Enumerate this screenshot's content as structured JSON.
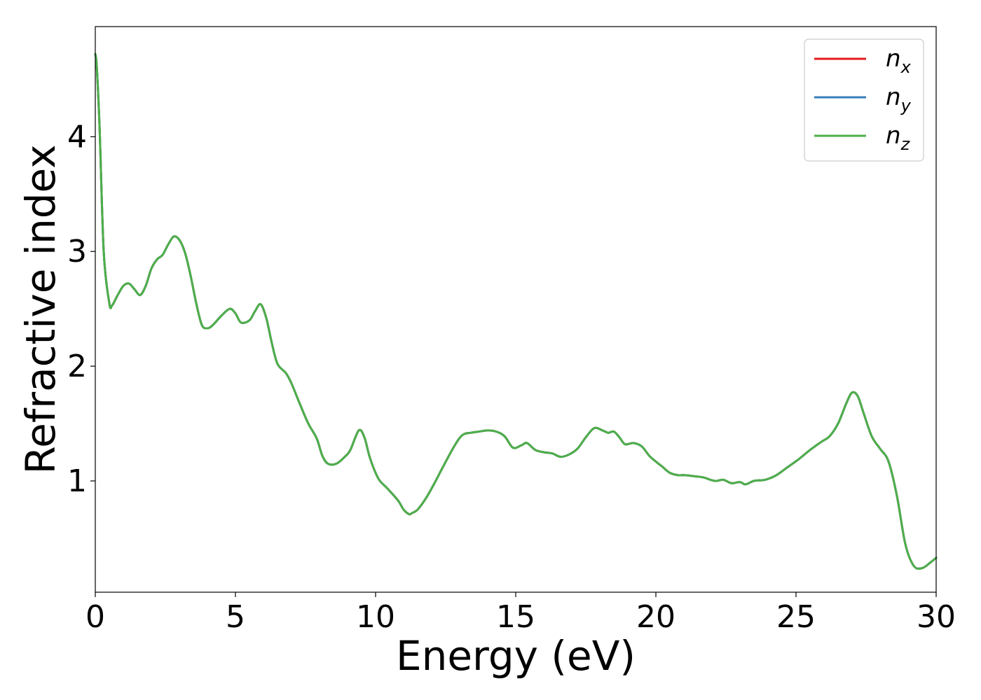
{
  "chart_data": {
    "type": "line",
    "xlabel": "Energy (eV)",
    "ylabel": "Refractive index",
    "xlim": [
      0,
      30
    ],
    "ylim": [
      0.03,
      4.96
    ],
    "xticks": [
      0,
      5,
      10,
      15,
      20,
      25,
      30
    ],
    "xtick_labels": [
      "0",
      "5",
      "10",
      "15",
      "20",
      "25",
      "30"
    ],
    "yticks": [
      1,
      2,
      3,
      4
    ],
    "ytick_labels": [
      "1",
      "2",
      "3",
      "4"
    ],
    "grid": false,
    "legend_position": "top-right",
    "x": [
      0.0,
      0.05,
      0.15,
      0.3,
      0.5,
      0.6,
      0.8,
      1.0,
      1.2,
      1.4,
      1.6,
      1.8,
      2.0,
      2.2,
      2.4,
      2.6,
      2.8,
      3.0,
      3.2,
      3.4,
      3.6,
      3.8,
      4.0,
      4.2,
      4.5,
      4.8,
      5.0,
      5.2,
      5.5,
      5.7,
      5.9,
      6.1,
      6.3,
      6.5,
      6.8,
      7.0,
      7.3,
      7.6,
      7.9,
      8.1,
      8.3,
      8.6,
      8.9,
      9.1,
      9.4,
      9.6,
      9.8,
      10.1,
      10.4,
      10.8,
      11.0,
      11.2,
      11.3,
      11.5,
      11.8,
      12.1,
      12.4,
      12.8,
      13.1,
      13.4,
      13.7,
      14.0,
      14.3,
      14.6,
      14.9,
      15.2,
      15.4,
      15.7,
      16.0,
      16.3,
      16.6,
      16.9,
      17.2,
      17.5,
      17.8,
      18.1,
      18.3,
      18.5,
      18.7,
      18.9,
      19.2,
      19.5,
      19.8,
      20.2,
      20.5,
      20.8,
      21.0,
      21.4,
      21.7,
      22.1,
      22.4,
      22.7,
      23.0,
      23.2,
      23.5,
      23.9,
      24.3,
      24.7,
      25.1,
      25.5,
      25.9,
      26.2,
      26.5,
      26.8,
      27.0,
      27.2,
      27.4,
      27.7,
      28.0,
      28.3,
      28.6,
      28.9,
      29.2,
      29.5,
      29.8,
      30.0
    ],
    "series": [
      {
        "name": "n",
        "subscript": "x",
        "color": "#e41a1c",
        "values": [
          4.72,
          4.62,
          4.1,
          3.0,
          2.55,
          2.53,
          2.62,
          2.7,
          2.72,
          2.67,
          2.62,
          2.7,
          2.85,
          2.93,
          2.97,
          3.06,
          3.13,
          3.1,
          2.99,
          2.79,
          2.55,
          2.36,
          2.33,
          2.36,
          2.44,
          2.5,
          2.46,
          2.38,
          2.4,
          2.48,
          2.54,
          2.42,
          2.2,
          2.02,
          1.94,
          1.85,
          1.67,
          1.5,
          1.37,
          1.22,
          1.15,
          1.15,
          1.21,
          1.27,
          1.44,
          1.38,
          1.2,
          1.02,
          0.94,
          0.83,
          0.75,
          0.71,
          0.72,
          0.75,
          0.85,
          0.98,
          1.12,
          1.3,
          1.4,
          1.42,
          1.43,
          1.44,
          1.43,
          1.39,
          1.29,
          1.31,
          1.33,
          1.27,
          1.25,
          1.24,
          1.21,
          1.23,
          1.28,
          1.38,
          1.46,
          1.44,
          1.42,
          1.43,
          1.38,
          1.32,
          1.33,
          1.3,
          1.21,
          1.13,
          1.07,
          1.05,
          1.05,
          1.04,
          1.03,
          1.0,
          1.01,
          0.98,
          0.99,
          0.97,
          1.0,
          1.01,
          1.05,
          1.12,
          1.19,
          1.27,
          1.34,
          1.39,
          1.5,
          1.68,
          1.77,
          1.74,
          1.6,
          1.39,
          1.28,
          1.17,
          0.87,
          0.45,
          0.26,
          0.24,
          0.29,
          0.33
        ]
      },
      {
        "name": "n",
        "subscript": "y",
        "color": "#377eb8",
        "values": [
          4.72,
          4.62,
          4.1,
          3.0,
          2.55,
          2.53,
          2.62,
          2.7,
          2.72,
          2.67,
          2.62,
          2.7,
          2.85,
          2.93,
          2.97,
          3.06,
          3.13,
          3.1,
          2.99,
          2.79,
          2.55,
          2.36,
          2.33,
          2.36,
          2.44,
          2.5,
          2.46,
          2.38,
          2.4,
          2.48,
          2.54,
          2.42,
          2.2,
          2.02,
          1.94,
          1.85,
          1.67,
          1.5,
          1.37,
          1.22,
          1.15,
          1.15,
          1.21,
          1.27,
          1.44,
          1.38,
          1.2,
          1.02,
          0.94,
          0.83,
          0.75,
          0.71,
          0.72,
          0.75,
          0.85,
          0.98,
          1.12,
          1.3,
          1.4,
          1.42,
          1.43,
          1.44,
          1.43,
          1.39,
          1.29,
          1.31,
          1.33,
          1.27,
          1.25,
          1.24,
          1.21,
          1.23,
          1.28,
          1.38,
          1.46,
          1.44,
          1.42,
          1.43,
          1.38,
          1.32,
          1.33,
          1.3,
          1.21,
          1.13,
          1.07,
          1.05,
          1.05,
          1.04,
          1.03,
          1.0,
          1.01,
          0.98,
          0.99,
          0.97,
          1.0,
          1.01,
          1.05,
          1.12,
          1.19,
          1.27,
          1.34,
          1.39,
          1.5,
          1.68,
          1.77,
          1.74,
          1.6,
          1.39,
          1.28,
          1.17,
          0.87,
          0.45,
          0.26,
          0.24,
          0.29,
          0.33
        ]
      },
      {
        "name": "n",
        "subscript": "z",
        "color": "#4daf4a",
        "values": [
          4.72,
          4.62,
          4.1,
          3.0,
          2.55,
          2.53,
          2.62,
          2.7,
          2.72,
          2.67,
          2.62,
          2.7,
          2.85,
          2.93,
          2.97,
          3.06,
          3.13,
          3.1,
          2.99,
          2.79,
          2.55,
          2.36,
          2.33,
          2.36,
          2.44,
          2.5,
          2.46,
          2.38,
          2.4,
          2.48,
          2.54,
          2.42,
          2.2,
          2.02,
          1.94,
          1.85,
          1.67,
          1.5,
          1.37,
          1.22,
          1.15,
          1.15,
          1.21,
          1.27,
          1.44,
          1.38,
          1.2,
          1.02,
          0.94,
          0.83,
          0.75,
          0.71,
          0.72,
          0.75,
          0.85,
          0.98,
          1.12,
          1.3,
          1.4,
          1.42,
          1.43,
          1.44,
          1.43,
          1.39,
          1.29,
          1.31,
          1.33,
          1.27,
          1.25,
          1.24,
          1.21,
          1.23,
          1.28,
          1.38,
          1.46,
          1.44,
          1.42,
          1.43,
          1.38,
          1.32,
          1.33,
          1.3,
          1.21,
          1.13,
          1.07,
          1.05,
          1.05,
          1.04,
          1.03,
          1.0,
          1.01,
          0.98,
          0.99,
          0.97,
          1.0,
          1.01,
          1.05,
          1.12,
          1.19,
          1.27,
          1.34,
          1.39,
          1.5,
          1.68,
          1.77,
          1.74,
          1.6,
          1.39,
          1.28,
          1.17,
          0.87,
          0.45,
          0.26,
          0.24,
          0.29,
          0.33
        ]
      }
    ]
  }
}
